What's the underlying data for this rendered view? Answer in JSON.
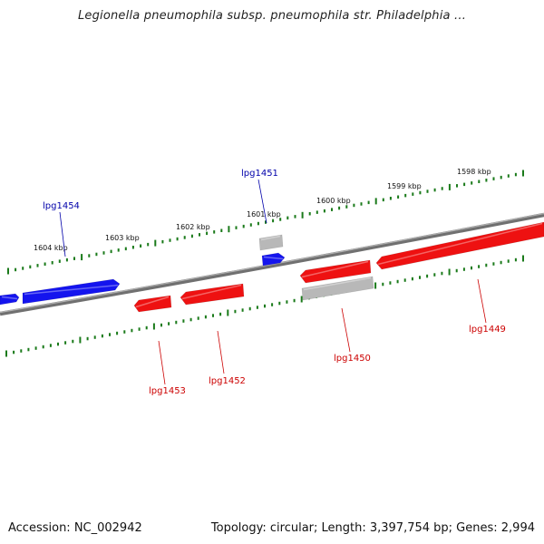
{
  "title": "Legionella pneumophila subsp. pneumophila str. Philadelphia ...",
  "footer": {
    "accession": "Accession: NC_002942",
    "summary": "Topology: circular; Length: 3,397,754 bp; Genes: 2,994"
  },
  "colors": {
    "forward": "#1414ee",
    "reverse": "#ee1111",
    "other": "#b8b8b8",
    "backbone": "#808080",
    "ticks": "#1a7a1a",
    "forward_label": "#0000aa",
    "reverse_label": "#cc0000"
  },
  "ticks": [
    "1604 kbp",
    "1603 kbp",
    "1602 kbp",
    "1601 kbp",
    "1600 kbp",
    "1599 kbp",
    "1598 kbp"
  ],
  "genes": [
    {
      "name": "",
      "strand": "forward"
    },
    {
      "name": "lpg1454",
      "strand": "forward"
    },
    {
      "name": "lpg1453",
      "strand": "reverse"
    },
    {
      "name": "lpg1452",
      "strand": "reverse"
    },
    {
      "name": "lpg1451",
      "strand": "forward"
    },
    {
      "name": "",
      "strand": "other"
    },
    {
      "name": "lpg1450",
      "strand": "reverse"
    },
    {
      "name": "",
      "strand": "other"
    },
    {
      "name": "lpg1449",
      "strand": "reverse"
    }
  ]
}
